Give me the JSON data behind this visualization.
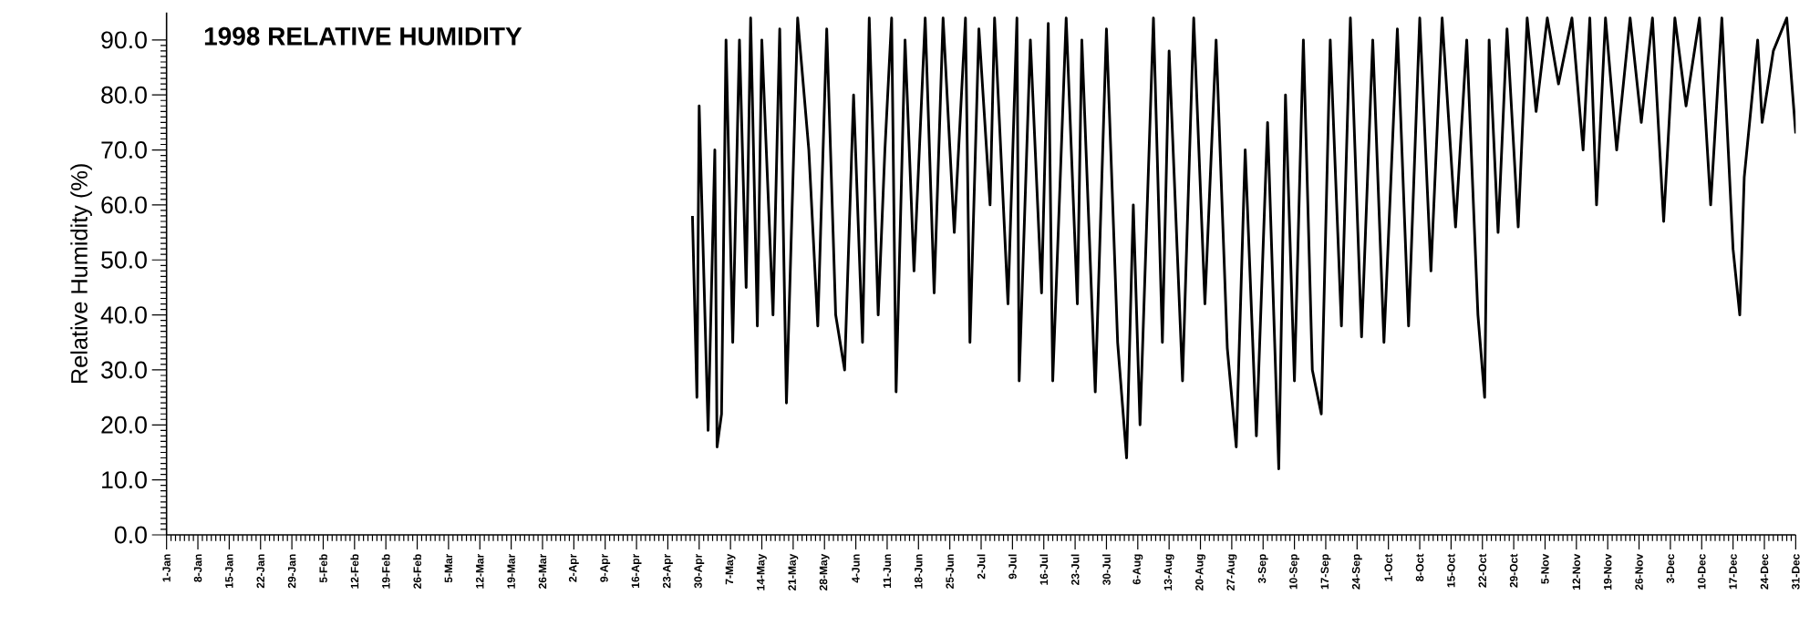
{
  "chart_data": {
    "type": "line",
    "title": "1998 RELATIVE HUMIDITY",
    "ylabel": "Relative Humidity (%)",
    "color": "#000000",
    "x": [
      "1998-04-28T12:00",
      "1998-04-29T12:00",
      "1998-04-30",
      "1998-05-02",
      "1998-05-03T12:00",
      "1998-05-04",
      "1998-05-05",
      "1998-05-06",
      "1998-05-07T12:00",
      "1998-05-09",
      "1998-05-10T12:00",
      "1998-05-11T12:00",
      "1998-05-13",
      "1998-05-14",
      "1998-05-16T12:00",
      "1998-05-18",
      "1998-05-19T12:00",
      "1998-05-22",
      "1998-05-24T12:00",
      "1998-05-26T12:00",
      "1998-05-28T12:00",
      "1998-05-30T12:00",
      "1998-06-01T12:00",
      "1998-06-03T12:00",
      "1998-06-05T12:00",
      "1998-06-07",
      "1998-06-09",
      "1998-06-10T12:00",
      "1998-06-12",
      "1998-06-13",
      "1998-06-15",
      "1998-06-17",
      "1998-06-19T12:00",
      "1998-06-21T12:00",
      "1998-06-23T12:00",
      "1998-06-26",
      "1998-06-28T12:00",
      "1998-06-29T12:00",
      "1998-07-01T12:00",
      "1998-07-04",
      "1998-07-05",
      "1998-07-08",
      "1998-07-10",
      "1998-07-10T12:00",
      "1998-07-13",
      "1998-07-15T12:00",
      "1998-07-17",
      "1998-07-18",
      "1998-07-21",
      "1998-07-23T12:00",
      "1998-07-24T12:00",
      "1998-07-27T12:00",
      "1998-07-30",
      "1998-08-01T12:00",
      "1998-08-03T12:00",
      "1998-08-05",
      "1998-08-06T12:00",
      "1998-08-09T12:00",
      "1998-08-11T12:00",
      "1998-08-13",
      "1998-08-16",
      "1998-08-18T12:00",
      "1998-08-21",
      "1998-08-23T12:00",
      "1998-08-26",
      "1998-08-28",
      "1998-08-30",
      "1998-09-01T12:00",
      "1998-09-04",
      "1998-09-06T12:00",
      "1998-09-08",
      "1998-09-10",
      "1998-09-12",
      "1998-09-14",
      "1998-09-16",
      "1998-09-18",
      "1998-09-20T12:00",
      "1998-09-22T12:00",
      "1998-09-25",
      "1998-09-27T12:00",
      "1998-09-30",
      "1998-10-03",
      "1998-10-05T12:00",
      "1998-10-08",
      "1998-10-10T12:00",
      "1998-10-13",
      "1998-10-16",
      "1998-10-18T12:00",
      "1998-10-21",
      "1998-10-22T12:00",
      "1998-10-23T12:00",
      "1998-10-25T12:00",
      "1998-10-27T12:00",
      "1998-10-30",
      "1998-11-01",
      "1998-11-03",
      "1998-11-05T12:00",
      "1998-11-08",
      "1998-11-11",
      "1998-11-13T12:00",
      "1998-11-15",
      "1998-11-16T12:00",
      "1998-11-18T12:00",
      "1998-11-21",
      "1998-11-24",
      "1998-11-26T12:00",
      "1998-11-29",
      "1998-12-01T12:00",
      "1998-12-04",
      "1998-12-06T12:00",
      "1998-12-09T12:00",
      "1998-12-12",
      "1998-12-14T12:00",
      "1998-12-17",
      "1998-12-18T12:00",
      "1998-12-19T12:00",
      "1998-12-22T12:00",
      "1998-12-23T12:00",
      "1998-12-26",
      "1998-12-29",
      "1998-12-31"
    ],
    "values": [
      58,
      25,
      78,
      19,
      70,
      16,
      22,
      90,
      35,
      90,
      45,
      94,
      38,
      90,
      40,
      92,
      24,
      94,
      70,
      38,
      92,
      40,
      30,
      80,
      35,
      94,
      40,
      70,
      94,
      26,
      90,
      48,
      94,
      44,
      94,
      55,
      94,
      35,
      92,
      60,
      94,
      42,
      94,
      28,
      90,
      44,
      93,
      28,
      94,
      42,
      90,
      26,
      92,
      35,
      14,
      60,
      20,
      94,
      35,
      88,
      28,
      94,
      42,
      90,
      34,
      16,
      70,
      18,
      75,
      12,
      80,
      28,
      90,
      30,
      22,
      90,
      38,
      94,
      36,
      90,
      35,
      92,
      38,
      94,
      48,
      94,
      56,
      90,
      40,
      25,
      90,
      55,
      92,
      56,
      94,
      77,
      94,
      82,
      94,
      70,
      94,
      60,
      94,
      70,
      94,
      75,
      94,
      57,
      94,
      78,
      94,
      60,
      94,
      52,
      40,
      65,
      90,
      75,
      88,
      94,
      73
    ],
    "xlim": [
      "1998-01-01",
      "1998-12-31"
    ],
    "ylim": [
      0,
      95
    ],
    "xticks": [
      {
        "value": "1998-01-01",
        "label": "1-Jan"
      },
      {
        "value": "1998-01-08",
        "label": "8-Jan"
      },
      {
        "value": "1998-01-15",
        "label": "15-Jan"
      },
      {
        "value": "1998-01-22",
        "label": "22-Jan"
      },
      {
        "value": "1998-01-29",
        "label": "29-Jan"
      },
      {
        "value": "1998-02-05",
        "label": "5-Feb"
      },
      {
        "value": "1998-02-12",
        "label": "12-Feb"
      },
      {
        "value": "1998-02-19",
        "label": "19-Feb"
      },
      {
        "value": "1998-02-26",
        "label": "26-Feb"
      },
      {
        "value": "1998-03-05",
        "label": "5-Mar"
      },
      {
        "value": "1998-03-12",
        "label": "12-Mar"
      },
      {
        "value": "1998-03-19",
        "label": "19-Mar"
      },
      {
        "value": "1998-03-26",
        "label": "26-Mar"
      },
      {
        "value": "1998-04-02",
        "label": "2-Apr"
      },
      {
        "value": "1998-04-09",
        "label": "9-Apr"
      },
      {
        "value": "1998-04-16",
        "label": "16-Apr"
      },
      {
        "value": "1998-04-23",
        "label": "23-Apr"
      },
      {
        "value": "1998-04-30",
        "label": "30-Apr"
      },
      {
        "value": "1998-05-07",
        "label": "7-May"
      },
      {
        "value": "1998-05-14",
        "label": "14-May"
      },
      {
        "value": "1998-05-21",
        "label": "21-May"
      },
      {
        "value": "1998-05-28",
        "label": "28-May"
      },
      {
        "value": "1998-06-04",
        "label": "4-Jun"
      },
      {
        "value": "1998-06-11",
        "label": "11-Jun"
      },
      {
        "value": "1998-06-18",
        "label": "18-Jun"
      },
      {
        "value": "1998-06-25",
        "label": "25-Jun"
      },
      {
        "value": "1998-07-02",
        "label": "2-Jul"
      },
      {
        "value": "1998-07-09",
        "label": "9-Jul"
      },
      {
        "value": "1998-07-16",
        "label": "16-Jul"
      },
      {
        "value": "1998-07-23",
        "label": "23-Jul"
      },
      {
        "value": "1998-07-30",
        "label": "30-Jul"
      },
      {
        "value": "1998-08-06",
        "label": "6-Aug"
      },
      {
        "value": "1998-08-13",
        "label": "13-Aug"
      },
      {
        "value": "1998-08-20",
        "label": "20-Aug"
      },
      {
        "value": "1998-08-27",
        "label": "27-Aug"
      },
      {
        "value": "1998-09-03",
        "label": "3-Sep"
      },
      {
        "value": "1998-09-10",
        "label": "10-Sep"
      },
      {
        "value": "1998-09-17",
        "label": "17-Sep"
      },
      {
        "value": "1998-09-24",
        "label": "24-Sep"
      },
      {
        "value": "1998-10-01",
        "label": "1-Oct"
      },
      {
        "value": "1998-10-08",
        "label": "8-Oct"
      },
      {
        "value": "1998-10-15",
        "label": "15-Oct"
      },
      {
        "value": "1998-10-22",
        "label": "22-Oct"
      },
      {
        "value": "1998-10-29",
        "label": "29-Oct"
      },
      {
        "value": "1998-11-05",
        "label": "5-Nov"
      },
      {
        "value": "1998-11-12",
        "label": "12-Nov"
      },
      {
        "value": "1998-11-19",
        "label": "19-Nov"
      },
      {
        "value": "1998-11-26",
        "label": "26-Nov"
      },
      {
        "value": "1998-12-03",
        "label": "3-Dec"
      },
      {
        "value": "1998-12-10",
        "label": "10-Dec"
      },
      {
        "value": "1998-12-17",
        "label": "17-Dec"
      },
      {
        "value": "1998-12-24",
        "label": "24-Dec"
      },
      {
        "value": "1998-12-31",
        "label": "31-Dec"
      }
    ],
    "yticks": [
      {
        "value": 0,
        "label": "0.0"
      },
      {
        "value": 10,
        "label": "10.0"
      },
      {
        "value": 20,
        "label": "20.0"
      },
      {
        "value": 30,
        "label": "30.0"
      },
      {
        "value": 40,
        "label": "40.0"
      },
      {
        "value": 50,
        "label": "50.0"
      },
      {
        "value": 60,
        "label": "60.0"
      },
      {
        "value": 70,
        "label": "70.0"
      },
      {
        "value": 80,
        "label": "80.0"
      },
      {
        "value": 90,
        "label": "90.0"
      }
    ]
  }
}
